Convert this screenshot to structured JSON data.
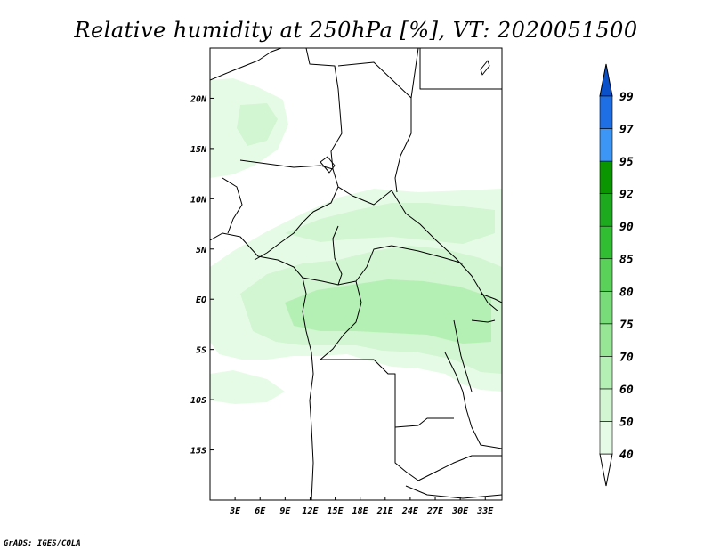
{
  "title": "Relative humidity at 250hPa [%], VT: 2020051500",
  "credit": "GrADS: IGES/COLA",
  "map": {
    "lon_range": [
      0,
      35
    ],
    "lat_range": [
      -20,
      25
    ],
    "lon_ticks": [
      "3E",
      "6E",
      "9E",
      "12E",
      "15E",
      "18E",
      "21E",
      "24E",
      "27E",
      "30E",
      "33E"
    ],
    "lat_ticks": [
      "20N",
      "15N",
      "10N",
      "5N",
      "EQ",
      "5S",
      "10S",
      "15S"
    ]
  },
  "colorbar": {
    "levels": [
      "40",
      "50",
      "60",
      "70",
      "75",
      "80",
      "85",
      "90",
      "92",
      "95",
      "97",
      "99"
    ],
    "colors": [
      "#ffffff",
      "#e6fbe6",
      "#d2f5d2",
      "#b4f0b4",
      "#96e696",
      "#78dc78",
      "#5ad25a",
      "#32be32",
      "#1eaa1e",
      "#0a9600",
      "#3c96f5",
      "#1e6ee6",
      "#0a50c8"
    ]
  },
  "humidity_colors": {
    "light": "#e6fbe6",
    "mid": "#d2f5d2",
    "high": "#b4f0b4"
  }
}
